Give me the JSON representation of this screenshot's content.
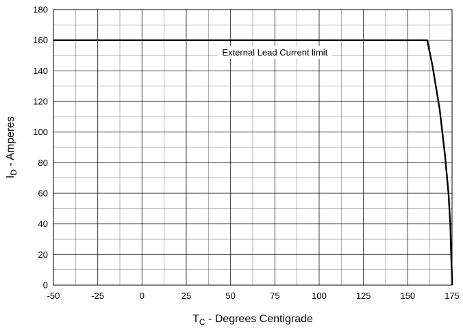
{
  "chart_data": {
    "type": "line",
    "title": "",
    "xlabel": {
      "main": "T",
      "sub": "C",
      "rest": " - Degrees Centigrade"
    },
    "ylabel": {
      "main": "I",
      "sub": "D",
      "rest": " - Amperes"
    },
    "xlim": [
      -50,
      175
    ],
    "ylim": [
      0,
      180
    ],
    "x_ticks": [
      "-50",
      "-25",
      "0",
      "25",
      "50",
      "75",
      "100",
      "125",
      "150",
      "175"
    ],
    "y_ticks": [
      "0",
      "20",
      "40",
      "60",
      "80",
      "100",
      "120",
      "140",
      "160",
      "180"
    ],
    "x_minor_step": 12.5,
    "y_minor_step": 10,
    "grid": true,
    "series": [
      {
        "x": [
          -50,
          161,
          164,
          168,
          171,
          173,
          174,
          174.5,
          175,
          175
        ],
        "y": [
          160,
          160,
          143,
          115,
          85,
          60,
          40,
          20,
          5,
          0
        ],
        "color": "#000000"
      }
    ],
    "annotations": [
      {
        "text": "External Lead Current limit",
        "x": 75,
        "y": 152
      }
    ]
  }
}
